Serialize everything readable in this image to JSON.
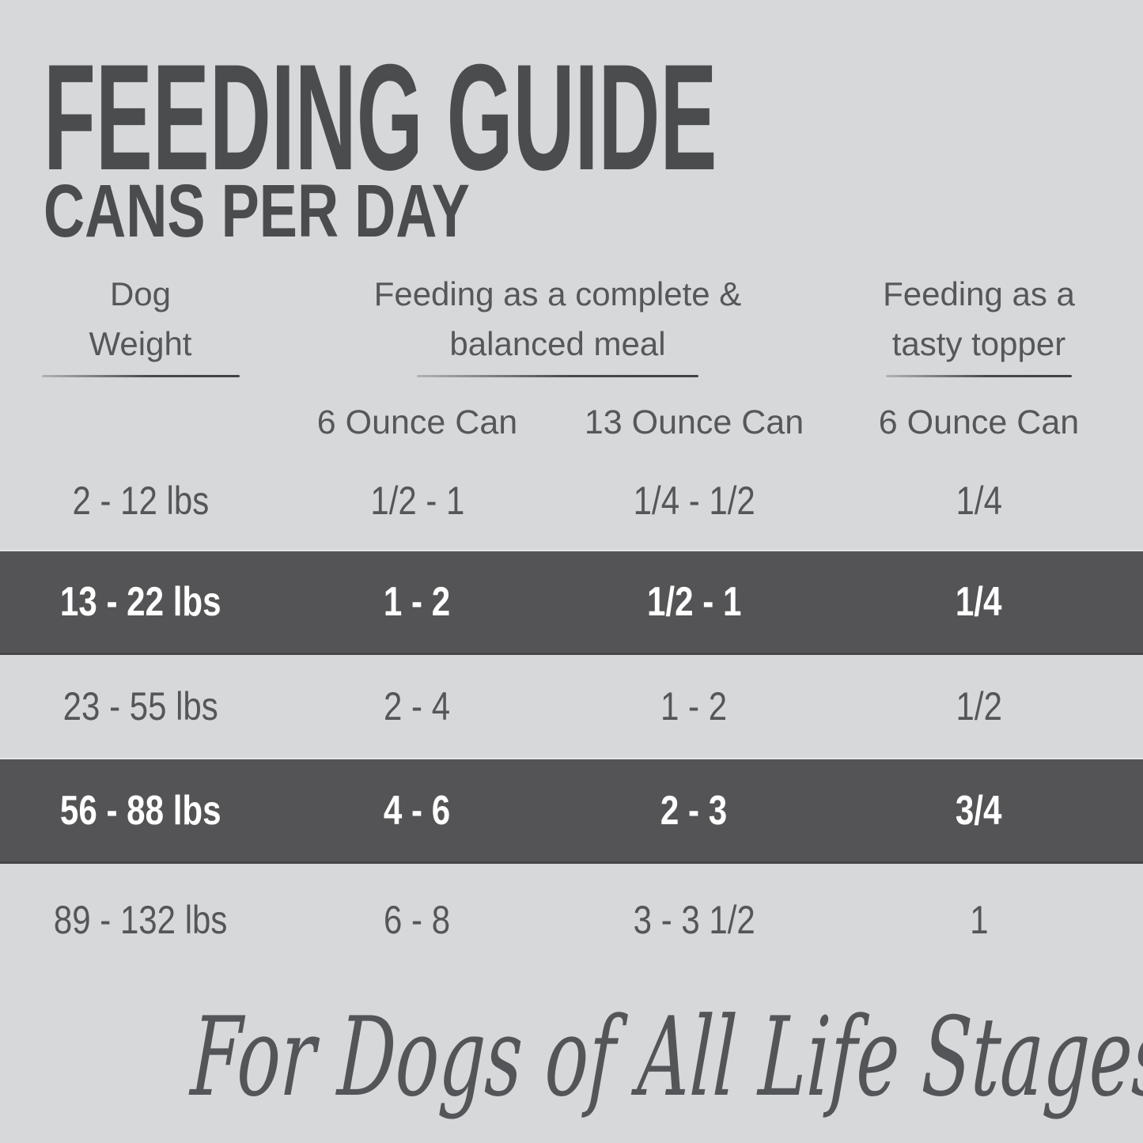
{
  "title": "FEEDING GUIDE",
  "subtitle": "CANS PER DAY",
  "display": {
    "headers": {
      "dog_weight": [
        "Dog",
        "Weight"
      ],
      "complete_meal": [
        "Feeding as a complete &",
        "balanced meal"
      ],
      "tasty_topper": [
        "Feeding as a",
        "tasty topper"
      ]
    },
    "subheaders": {
      "meal_6oz": "6 Ounce Can",
      "meal_13oz": "13 Ounce Can",
      "topper_6oz": "6 Ounce Can"
    }
  },
  "chart_data": {
    "type": "table",
    "title": "FEEDING GUIDE",
    "subtitle": "CANS PER DAY",
    "column_groups": [
      {
        "label": "Dog Weight",
        "columns": [
          "Dog Weight"
        ]
      },
      {
        "label": "Feeding as a complete & balanced meal",
        "columns": [
          "6 Ounce Can",
          "13 Ounce Can"
        ]
      },
      {
        "label": "Feeding as a tasty topper",
        "columns": [
          "6 Ounce Can"
        ]
      }
    ],
    "rows": [
      {
        "dog_weight": "2 - 12 lbs",
        "complete_meal_6oz": "1/2 - 1",
        "complete_meal_13oz": "1/4 - 1/2",
        "topper_6oz": "1/4",
        "highlighted": false
      },
      {
        "dog_weight": "13 - 22 lbs",
        "complete_meal_6oz": "1 - 2",
        "complete_meal_13oz": "1/2 - 1",
        "topper_6oz": "1/4",
        "highlighted": true
      },
      {
        "dog_weight": "23 - 55 lbs",
        "complete_meal_6oz": "2 - 4",
        "complete_meal_13oz": "1 - 2",
        "topper_6oz": "1/2",
        "highlighted": false
      },
      {
        "dog_weight": "56 - 88 lbs",
        "complete_meal_6oz": "4 - 6",
        "complete_meal_13oz": "2 - 3",
        "topper_6oz": "3/4",
        "highlighted": true
      },
      {
        "dog_weight": "89 - 132 lbs",
        "complete_meal_6oz": "6 - 8",
        "complete_meal_13oz": "3 - 3 1/2",
        "topper_6oz": "1",
        "highlighted": false
      }
    ],
    "footnote": "For Dogs of All Life Stages"
  },
  "footer": {
    "tagline": "For Dogs of All Life Stages"
  },
  "colors": {
    "background": "#d7d8da",
    "highlight_row": "#545456",
    "title_text": "#4b4c4e",
    "body_text": "#56575a",
    "highlight_text": "#ffffff"
  }
}
